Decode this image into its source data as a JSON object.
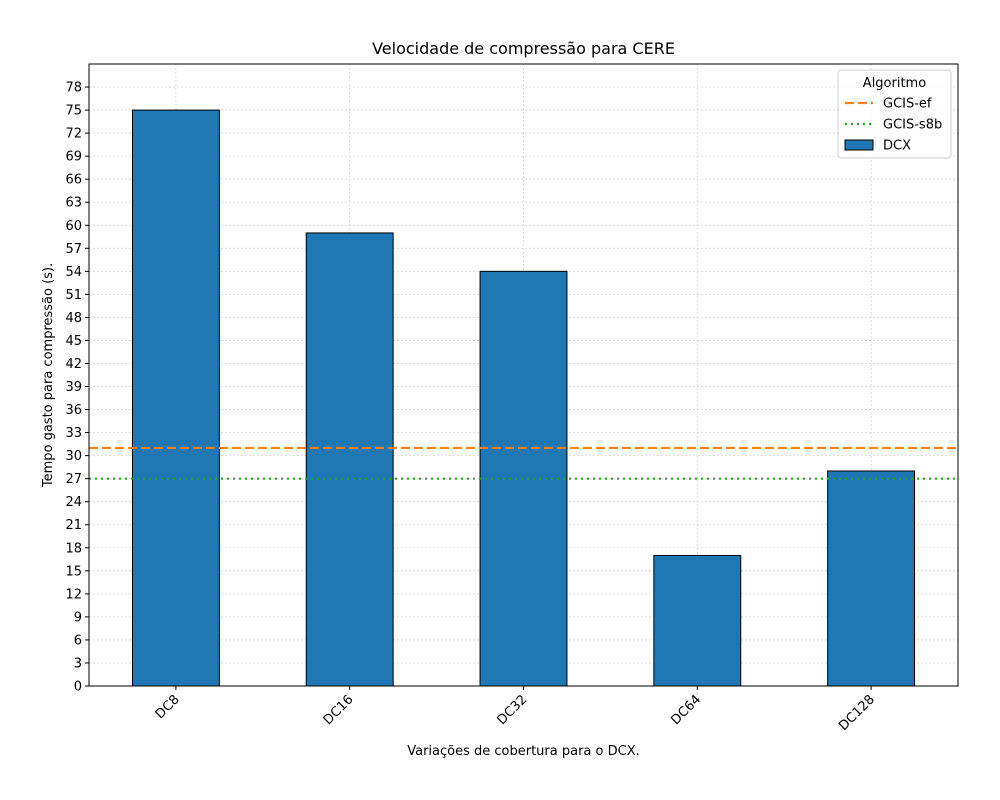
{
  "chart_data": {
    "type": "bar",
    "title": "Velocidade de compressão para  CERE",
    "xlabel": "Variações de cobertura para o DCX.",
    "ylabel": "Tempo gasto para compressão (s).",
    "categories": [
      "DC8",
      "DC16",
      "DC32",
      "DC64",
      "DC128"
    ],
    "series": [
      {
        "name": "DCX",
        "values": [
          75,
          59,
          54,
          17,
          28
        ],
        "color": "#1f77b4"
      }
    ],
    "reference_lines": [
      {
        "name": "GCIS-ef",
        "value": 31,
        "color": "#ff7f0e",
        "style": "dashed"
      },
      {
        "name": "GCIS-s8b",
        "value": 27,
        "color": "#2ca02c",
        "style": "dotted"
      }
    ],
    "ylim": [
      0,
      81
    ],
    "yticks": [
      0,
      3,
      6,
      9,
      12,
      15,
      18,
      21,
      24,
      27,
      30,
      33,
      36,
      39,
      42,
      45,
      48,
      51,
      54,
      57,
      60,
      63,
      66,
      69,
      72,
      75,
      78
    ],
    "grid": true,
    "legend": {
      "title": "Algoritmo",
      "placement": "top-right",
      "entries": [
        "GCIS-ef",
        "GCIS-s8b",
        "DCX"
      ]
    }
  }
}
